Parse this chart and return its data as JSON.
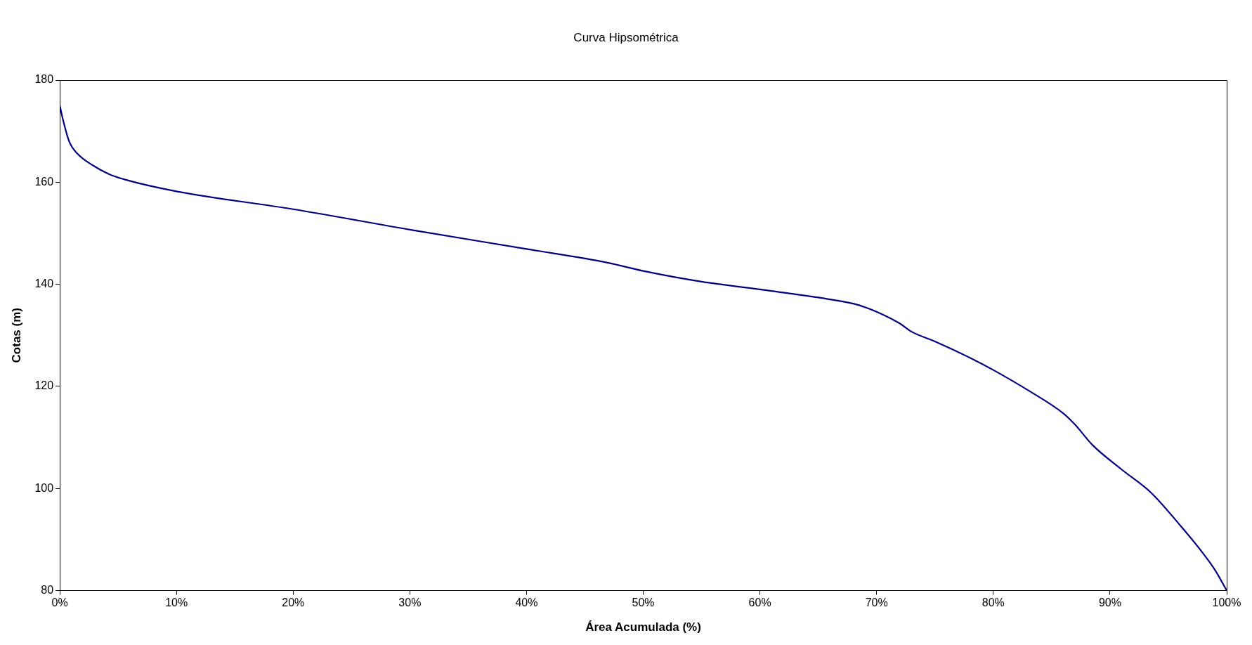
{
  "chart_data": {
    "type": "line",
    "title": "Curva Hipsométrica",
    "xlabel": "Área Acumulada (%)",
    "ylabel": "Cotas (m)",
    "x": [
      0,
      0.3,
      0.8,
      1.5,
      2.9,
      4.2,
      5.6,
      10,
      20,
      30,
      40,
      47,
      50,
      55,
      60,
      65,
      68,
      69,
      70,
      72,
      73,
      75,
      78,
      80,
      83,
      86,
      87,
      88.5,
      91,
      93.5,
      96,
      98,
      99,
      100
    ],
    "series": [
      {
        "color": "#000080",
        "values": [
          175,
          172,
          168,
          165.6,
          163.2,
          161.6,
          160.5,
          158.2,
          154.7,
          150.7,
          146.9,
          144.2,
          142.6,
          140.5,
          139,
          137.4,
          136.2,
          135.5,
          134.6,
          132.3,
          130.7,
          128.8,
          125.6,
          123.2,
          119.2,
          114.7,
          112.5,
          108.5,
          103.7,
          99.2,
          92.8,
          87.2,
          84,
          80
        ]
      }
    ],
    "xlim": [
      0,
      100
    ],
    "xticks": [
      {
        "value": 0,
        "label": "0%"
      },
      {
        "value": 10,
        "label": "10%"
      },
      {
        "value": 20,
        "label": "20%"
      },
      {
        "value": 30,
        "label": "30%"
      },
      {
        "value": 40,
        "label": "40%"
      },
      {
        "value": 50,
        "label": "50%"
      },
      {
        "value": 60,
        "label": "60%"
      },
      {
        "value": 70,
        "label": "70%"
      },
      {
        "value": 80,
        "label": "80%"
      },
      {
        "value": 90,
        "label": "90%"
      },
      {
        "value": 100,
        "label": "100%"
      }
    ],
    "ylim": [
      80,
      180
    ],
    "yticks": [
      80,
      100,
      120,
      140,
      160,
      180
    ],
    "legend": false,
    "marker": "none",
    "line_style": "solid"
  }
}
